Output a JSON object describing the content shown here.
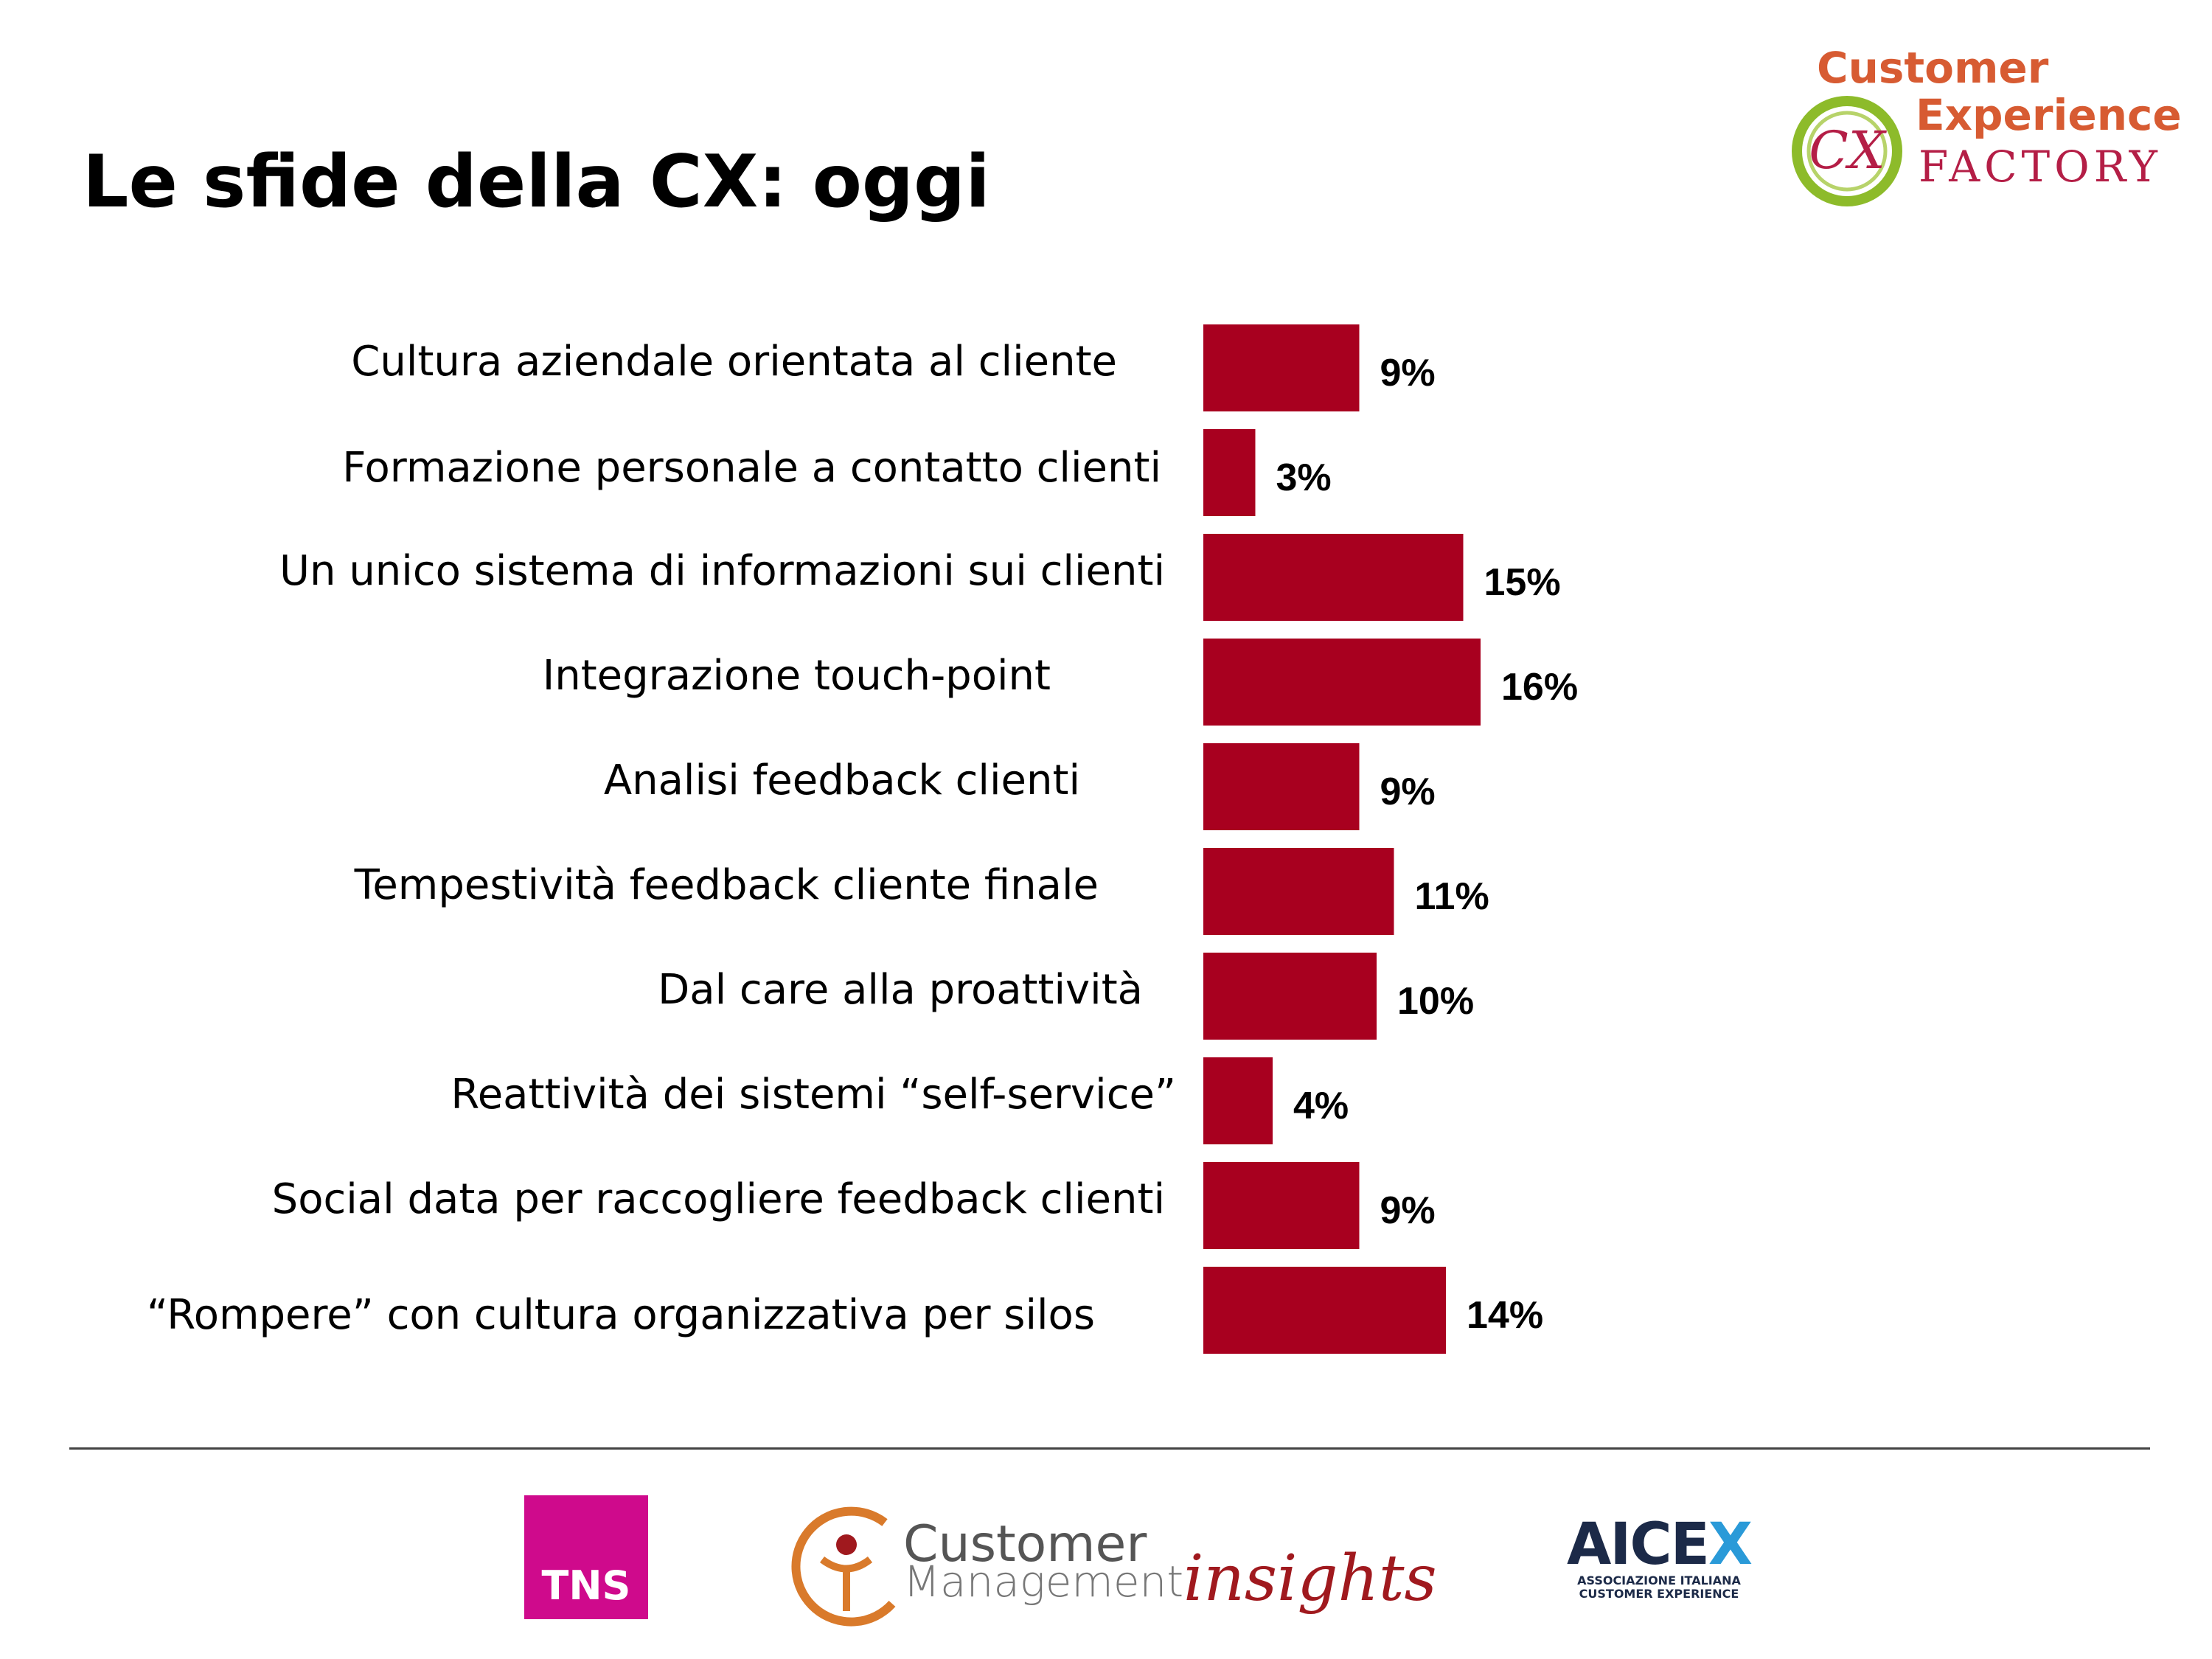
{
  "title": "Le sfide della CX: oggi",
  "colors": {
    "bar": "#a8001f",
    "text": "#000000"
  },
  "logos": {
    "cx_factory": {
      "line1": "Customer",
      "line2": "Experience",
      "line3": "FACTORY",
      "mark": "CX"
    },
    "tns": {
      "text": "TNS"
    },
    "cmi": {
      "word1": "Customer",
      "word2": "Management",
      "word3": "insights"
    },
    "aicex": {
      "name_main": "AICE",
      "name_accent": "X",
      "sub1": "ASSOCIAZIONE ITALIANA",
      "sub2": "CUSTOMER EXPERIENCE"
    }
  },
  "chart_data": {
    "type": "bar",
    "orientation": "horizontal",
    "categories": [
      "Cultura aziendale orientata al cliente",
      "Formazione personale a contatto clienti",
      "Un unico sistema di informazioni sui clienti",
      "Integrazione touch-point",
      "Analisi feedback clienti",
      "Tempestività  feedback  cliente finale",
      "Dal care alla proattività",
      "Reattività dei sistemi “self-service”",
      "Social data per raccogliere feedback clienti",
      "“Rompere” con cultura organizzativa  per silos"
    ],
    "values": [
      9,
      3,
      15,
      16,
      9,
      11,
      10,
      4,
      9,
      14
    ],
    "value_suffix": "%",
    "title": "",
    "xlabel": "",
    "ylabel": "",
    "grid": false,
    "legend": "none"
  }
}
